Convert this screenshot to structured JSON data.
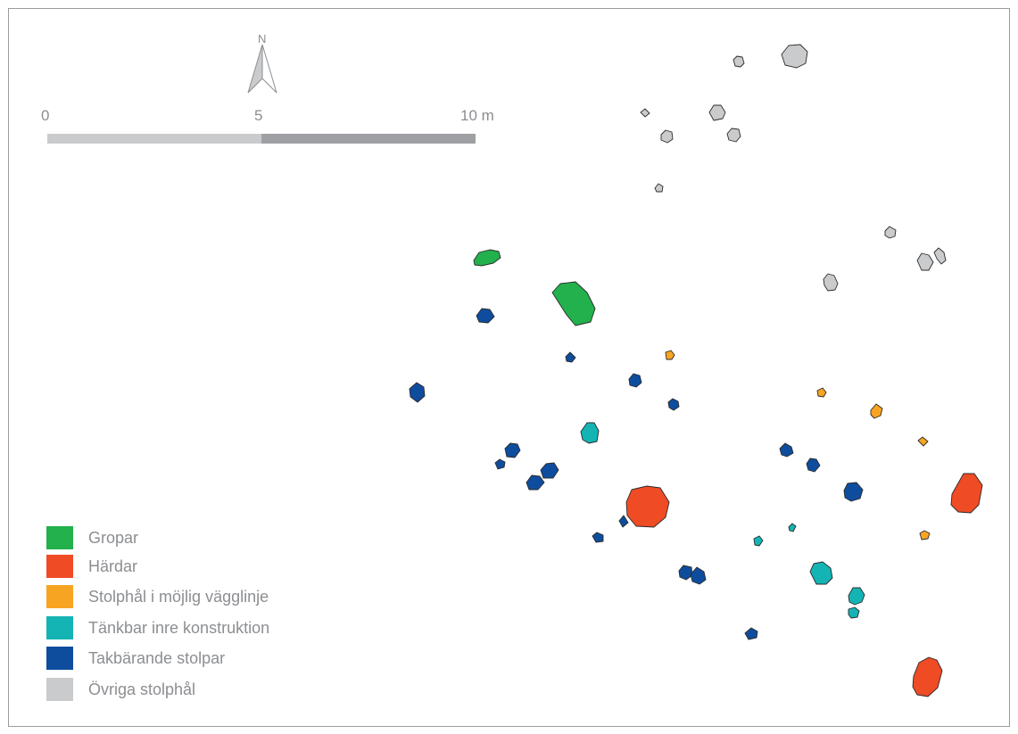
{
  "north_arrow": {
    "label": "N"
  },
  "scale_bar": {
    "labels": [
      "0",
      "5",
      "10 m"
    ]
  },
  "colors": {
    "gropar": "#22b14c",
    "hardar": "#ef4b25",
    "vagglinje": "#f8a423",
    "inre": "#14b4b4",
    "takbarande": "#0e4d9e",
    "ovriga": "#c9cbcd",
    "scale_light": "#c9cbcd",
    "scale_dark": "#9ea0a3"
  },
  "legend": [
    {
      "label": "Gropar",
      "color": "#22b14c"
    },
    {
      "label": "Härdar",
      "color": "#ef4b25"
    },
    {
      "label": "Stolphål i möjlig vägglinje",
      "color": "#f8a423"
    },
    {
      "label": "Tänkbar inre konstruktion",
      "color": "#14b4b4"
    },
    {
      "label": "Takbärande stolpar",
      "color": "#0e4d9e"
    },
    {
      "label": "Övriga stolphål",
      "color": "#c9cbcd"
    }
  ]
}
